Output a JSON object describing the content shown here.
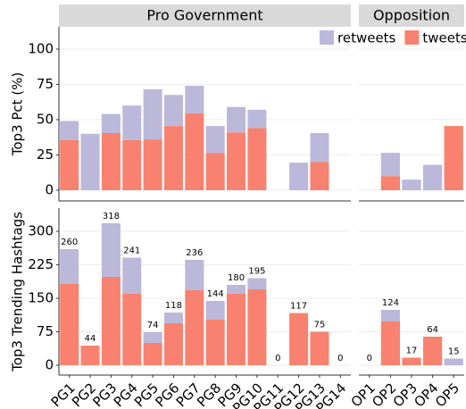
{
  "chart_data": {
    "type": "bar",
    "stacked": true,
    "grid": true,
    "legend": "top-right",
    "facets": [
      "Pro Government",
      "Opposition"
    ],
    "categories": [
      [
        "PG1",
        "PG2",
        "PG3",
        "PG4",
        "PG5",
        "PG6",
        "PG7",
        "PG8",
        "PG9",
        "PG10",
        "PG11",
        "PG12",
        "PG13",
        "PG14"
      ],
      [
        "OP1",
        "OP2",
        "OP3",
        "OP4",
        "OP5"
      ]
    ],
    "series": [
      {
        "name": "retweets",
        "color": "#bcb8da"
      },
      {
        "name": "tweets",
        "color": "#f8826f"
      }
    ],
    "rows": [
      {
        "ylabel": "Top3 Pct (%)",
        "ylim": [
          -7.6,
          115.8
        ],
        "yticks": [
          0,
          25,
          50,
          75,
          100
        ],
        "values": [
          [
            [
              13.5,
              40,
              13.5,
              24.5,
              35.5,
              22,
              19.5,
              19,
              18,
              13,
              0,
              19.5,
              20.5,
              0
            ],
            [
              0,
              16.5,
              7.5,
              18,
              0
            ]
          ],
          [
            [
              35.5,
              0,
              40.5,
              35.5,
              36,
              45.5,
              54.5,
              26.5,
              41,
              44,
              0,
              0,
              20,
              0
            ],
            [
              0,
              10,
              0,
              0,
              45.5
            ]
          ]
        ]
      },
      {
        "ylabel": "Top3 Trending Hashtags",
        "ylim": [
          -22,
          352
        ],
        "yticks": [
          0,
          75,
          150,
          225,
          300
        ],
        "values": [
          [
            [
              78,
              0,
              120,
              81,
              24,
              24,
              68,
              42,
              20,
              25,
              0,
              0,
              0,
              0
            ],
            [
              0,
              26,
              0,
              0,
              15
            ]
          ],
          [
            [
              182,
              44,
              198,
              160,
              50,
              94,
              168,
              102,
              160,
              170,
              0,
              117,
              75,
              0
            ],
            [
              0,
              98,
              17,
              64,
              0
            ]
          ]
        ],
        "bar_labels": [
          [
            "260",
            "44",
            "318",
            "241",
            "74",
            "118",
            "236",
            "144",
            "180",
            "195",
            "0",
            "117",
            "75",
            "0"
          ],
          [
            "0",
            "124",
            "17",
            "64",
            "15"
          ]
        ]
      }
    ]
  }
}
